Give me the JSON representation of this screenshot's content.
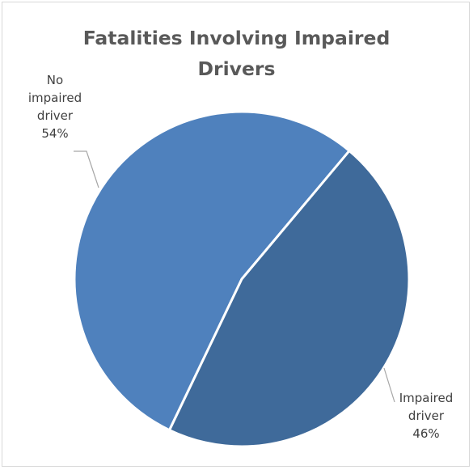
{
  "chart_data": {
    "type": "pie",
    "title": "Fatalities Involving Impaired Drivers",
    "categories": [
      "No impaired driver",
      "Impaired driver"
    ],
    "values": [
      54,
      46
    ],
    "value_unit": "%",
    "slices": [
      {
        "name": "No impaired driver",
        "value": 54,
        "label_lines": [
          "No",
          "impaired",
          "driver",
          "54%"
        ],
        "color": "#4f81bd"
      },
      {
        "name": "Impaired driver",
        "value": 46,
        "label_lines": [
          "Impaired",
          "driver",
          "46%"
        ],
        "color": "#3f6a9a"
      }
    ],
    "legend": "none",
    "data_labels": "outside-with-leader-lines"
  },
  "colors": {
    "slice_border": "#ffffff",
    "leader_line": "#a6a6a6",
    "title_text": "#595959",
    "label_text": "#404040",
    "frame_border": "#d9d9d9"
  }
}
